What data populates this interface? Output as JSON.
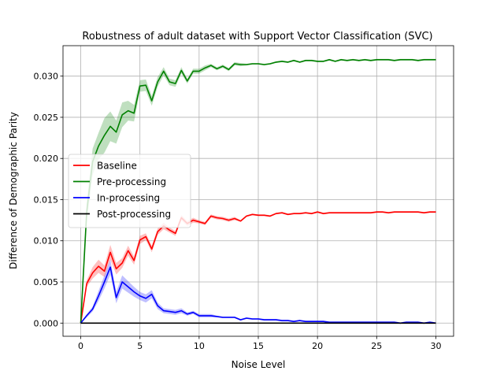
{
  "chart_data": {
    "type": "line",
    "title": "Robustness of adult dataset with Support Vector Classification (SVC)",
    "xlabel": "Noise Level",
    "ylabel": "Difference of Demographic Parity",
    "xlim": [
      -1.5,
      31.5
    ],
    "ylim": [
      -0.0016,
      0.0337
    ],
    "xticks": [
      0,
      5,
      10,
      15,
      20,
      25,
      30
    ],
    "xtick_labels": [
      "0",
      "5",
      "10",
      "15",
      "20",
      "25",
      "30"
    ],
    "yticks": [
      0.0,
      0.005,
      0.01,
      0.015,
      0.02,
      0.025,
      0.03
    ],
    "ytick_labels": [
      "0.000",
      "0.005",
      "0.010",
      "0.015",
      "0.020",
      "0.025",
      "0.030"
    ],
    "grid": true,
    "legend_position": "center-left",
    "x": [
      0,
      0.5,
      1,
      1.5,
      2,
      2.5,
      3,
      3.5,
      4,
      4.5,
      5,
      5.5,
      6,
      6.5,
      7,
      7.5,
      8,
      8.5,
      9,
      9.5,
      10,
      10.5,
      11,
      11.5,
      12,
      12.5,
      13,
      13.5,
      14,
      14.5,
      15,
      15.5,
      16,
      16.5,
      17,
      17.5,
      18,
      18.5,
      19,
      19.5,
      20,
      20.5,
      21,
      21.5,
      22,
      22.5,
      23,
      23.5,
      24,
      24.5,
      25,
      25.5,
      26,
      26.5,
      27,
      27.5,
      28,
      28.5,
      29,
      29.5,
      30
    ],
    "series": [
      {
        "name": "Baseline",
        "color": "#ff0000",
        "values": [
          0.0,
          0.0048,
          0.0061,
          0.0069,
          0.0063,
          0.0086,
          0.0066,
          0.0073,
          0.0088,
          0.0076,
          0.0101,
          0.0105,
          0.009,
          0.0111,
          0.0118,
          0.0113,
          0.0109,
          0.0128,
          0.0121,
          0.0125,
          0.0123,
          0.0121,
          0.013,
          0.0128,
          0.0127,
          0.0125,
          0.0127,
          0.0124,
          0.013,
          0.0132,
          0.0131,
          0.0131,
          0.013,
          0.0133,
          0.0134,
          0.0132,
          0.0133,
          0.0133,
          0.0134,
          0.0133,
          0.0135,
          0.0133,
          0.0134,
          0.0134,
          0.0134,
          0.0134,
          0.0134,
          0.0134,
          0.0134,
          0.0134,
          0.0135,
          0.0135,
          0.0134,
          0.0135,
          0.0135,
          0.0135,
          0.0135,
          0.0135,
          0.0134,
          0.0135,
          0.0135
        ],
        "band": [
          0.0,
          0.0004,
          0.0007,
          0.0008,
          0.0007,
          0.0009,
          0.0007,
          0.0006,
          0.0006,
          0.0005,
          0.0005,
          0.0004,
          0.0004,
          0.0004,
          0.0004,
          0.0003,
          0.0003,
          0.0003,
          0.0003,
          0.0003,
          0.0002,
          0.0002,
          0.0002,
          0.0002,
          0.0002,
          0.0002,
          0.0002,
          0.0001,
          0.0001,
          0.0001,
          0.0001,
          0.0001,
          0.0001,
          0.0001,
          0.0001,
          0.0001,
          0.0001,
          0.0001,
          0.0001,
          0.0001,
          0.0001,
          0.0001,
          0.0001,
          0.0001,
          0.0001,
          0.0001,
          0.0001,
          0.0001,
          0.0001,
          0.0001,
          0.0001,
          0.0001,
          0.0001,
          0.0001,
          0.0001,
          0.0001,
          0.0001,
          0.0001,
          0.0001,
          0.0001,
          0.0001
        ]
      },
      {
        "name": "Pre-processing",
        "color": "#008000",
        "values": [
          0.0,
          0.0135,
          0.0196,
          0.0215,
          0.0228,
          0.0239,
          0.0232,
          0.0253,
          0.0258,
          0.0255,
          0.0288,
          0.0289,
          0.027,
          0.0293,
          0.0306,
          0.0293,
          0.0291,
          0.0307,
          0.0294,
          0.0306,
          0.0306,
          0.031,
          0.0313,
          0.0309,
          0.0312,
          0.0308,
          0.0315,
          0.0314,
          0.0314,
          0.0315,
          0.0315,
          0.0314,
          0.0315,
          0.0317,
          0.0318,
          0.0317,
          0.0319,
          0.0317,
          0.0319,
          0.0319,
          0.0318,
          0.0318,
          0.032,
          0.0318,
          0.032,
          0.0319,
          0.032,
          0.0319,
          0.032,
          0.0319,
          0.032,
          0.032,
          0.032,
          0.0319,
          0.032,
          0.032,
          0.032,
          0.0319,
          0.032,
          0.032,
          0.032
        ],
        "band": [
          0.0,
          0.0012,
          0.0016,
          0.0016,
          0.0021,
          0.0018,
          0.0014,
          0.0015,
          0.0012,
          0.001,
          0.0007,
          0.0007,
          0.0006,
          0.0006,
          0.0005,
          0.0004,
          0.0004,
          0.0004,
          0.0003,
          0.0003,
          0.0003,
          0.0003,
          0.0002,
          0.0002,
          0.0002,
          0.0002,
          0.0002,
          0.0002,
          0.0001,
          0.0001,
          0.0001,
          0.0001,
          0.0001,
          0.0001,
          0.0001,
          0.0001,
          0.0001,
          0.0001,
          0.0001,
          0.0001,
          0.0001,
          0.0001,
          0.0001,
          0.0001,
          0.0001,
          0.0001,
          0.0001,
          0.0001,
          0.0001,
          0.0001,
          0.0001,
          0.0001,
          0.0001,
          0.0001,
          0.0001,
          0.0001,
          0.0001,
          0.0001,
          0.0001,
          0.0001,
          0.0001
        ]
      },
      {
        "name": "In-processing",
        "color": "#0000ff",
        "values": [
          0.0,
          0.0009,
          0.0017,
          0.0033,
          0.005,
          0.0068,
          0.0031,
          0.005,
          0.0044,
          0.0038,
          0.0033,
          0.003,
          0.0035,
          0.0021,
          0.0015,
          0.0014,
          0.0013,
          0.0015,
          0.0011,
          0.0013,
          0.0009,
          0.0009,
          0.0009,
          0.0008,
          0.0007,
          0.0007,
          0.0007,
          0.0004,
          0.0006,
          0.0005,
          0.0005,
          0.0004,
          0.0004,
          0.0004,
          0.0003,
          0.0003,
          0.0002,
          0.0003,
          0.0002,
          0.0002,
          0.0002,
          0.0002,
          0.0001,
          0.0001,
          0.0001,
          0.0001,
          0.0001,
          0.0001,
          0.0001,
          0.0001,
          0.0001,
          0.0001,
          0.0001,
          0.0001,
          0.0,
          0.0001,
          0.0001,
          0.0001,
          0.0,
          0.0001,
          0.0
        ],
        "band": [
          0.0,
          0.0002,
          0.0003,
          0.0006,
          0.0008,
          0.0009,
          0.0007,
          0.0008,
          0.0007,
          0.0006,
          0.0005,
          0.0005,
          0.0005,
          0.0004,
          0.0003,
          0.0003,
          0.0003,
          0.0003,
          0.0002,
          0.0002,
          0.0002,
          0.0002,
          0.0002,
          0.0001,
          0.0001,
          0.0001,
          0.0001,
          0.0001,
          0.0001,
          0.0001,
          0.0001,
          0.0001,
          0.0001,
          0.0001,
          0.0001,
          0.0001,
          0.0001,
          0.0001,
          0.0001,
          0.0001,
          0.0001,
          0.0001,
          0.0001,
          0.0001,
          0.0001,
          0.0001,
          0.0001,
          0.0001,
          0.0001,
          0.0001,
          0.0001,
          0.0001,
          0.0001,
          0.0001,
          0.0001,
          0.0001,
          0.0001,
          0.0001,
          0.0001,
          0.0001,
          0.0001
        ]
      },
      {
        "name": "Post-processing",
        "color": "#000000",
        "values": [
          0.0,
          0.0,
          0.0,
          0.0,
          0.0,
          0.0,
          0.0,
          0.0,
          0.0,
          0.0,
          0.0,
          0.0,
          0.0,
          0.0,
          0.0,
          0.0,
          0.0,
          0.0,
          0.0,
          0.0,
          0.0,
          0.0,
          0.0,
          0.0,
          0.0,
          0.0,
          0.0,
          0.0,
          0.0,
          0.0,
          0.0,
          0.0,
          0.0,
          0.0,
          0.0,
          0.0,
          0.0,
          0.0,
          0.0,
          0.0,
          0.0,
          0.0,
          0.0,
          0.0,
          0.0,
          0.0,
          0.0,
          0.0,
          0.0,
          0.0,
          0.0,
          0.0,
          0.0,
          0.0,
          0.0,
          0.0,
          0.0,
          0.0,
          0.0,
          0.0,
          0.0
        ],
        "band": [
          0.0,
          0.0,
          0.0,
          0.0,
          0.0,
          0.0,
          0.0,
          0.0,
          0.0,
          0.0,
          0.0,
          0.0,
          0.0,
          0.0,
          0.0,
          0.0,
          0.0,
          0.0,
          0.0,
          0.0,
          0.0,
          0.0,
          0.0,
          0.0,
          0.0,
          0.0,
          0.0,
          0.0,
          0.0,
          0.0,
          0.0,
          0.0,
          0.0,
          0.0,
          0.0,
          0.0,
          0.0,
          0.0,
          0.0,
          0.0,
          0.0,
          0.0,
          0.0,
          0.0,
          0.0,
          0.0,
          0.0,
          0.0,
          0.0,
          0.0,
          0.0,
          0.0,
          0.0,
          0.0,
          0.0,
          0.0,
          0.0,
          0.0,
          0.0,
          0.0,
          0.0
        ]
      }
    ]
  }
}
